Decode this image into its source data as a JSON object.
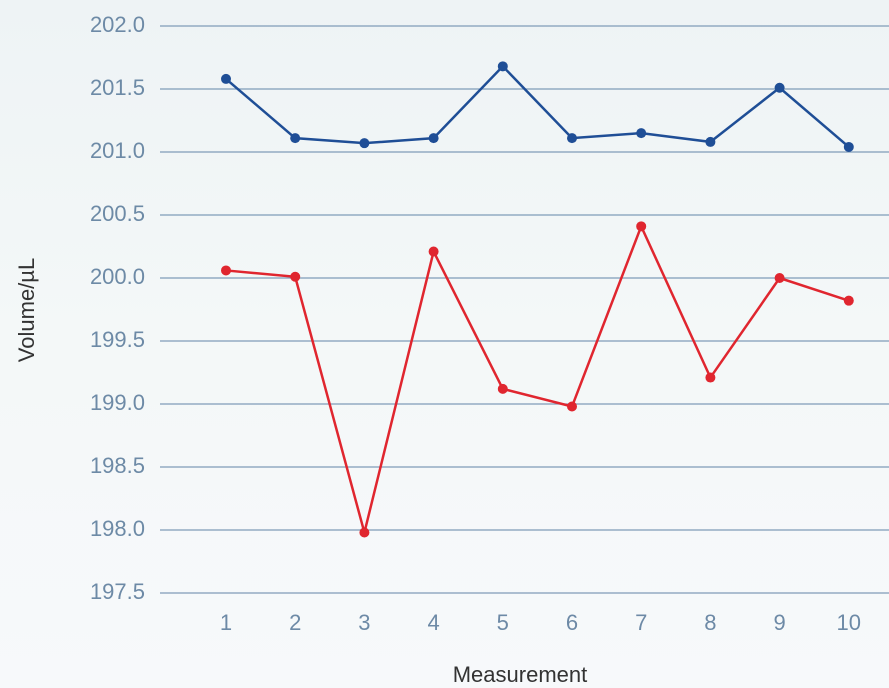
{
  "chart_data": {
    "type": "line",
    "y_label": "Volume/µL",
    "x_label": "Measurement",
    "categories": [
      "1",
      "2",
      "3",
      "4",
      "5",
      "6",
      "7",
      "8",
      "9",
      "10"
    ],
    "series": [
      {
        "color": "#1f4e96",
        "values": [
          201.58,
          201.11,
          201.07,
          201.11,
          201.68,
          201.11,
          201.15,
          201.08,
          201.51,
          201.04
        ]
      },
      {
        "color": "#e0262f",
        "values": [
          200.06,
          200.01,
          197.98,
          200.21,
          199.12,
          198.98,
          200.41,
          199.21,
          200.0,
          199.82
        ]
      }
    ],
    "ylim": [
      197.5,
      202.0
    ],
    "yticks": [
      197.5,
      {
        "value": 198,
        "label": "198.0"
      },
      198.5,
      {
        "value": 199,
        "label": "199.0"
      },
      199.5,
      {
        "value": 200,
        "label": "200.0"
      },
      200.5,
      {
        "value": 201,
        "label": "201.0"
      },
      201.5,
      {
        "value": 202,
        "label": "202.0"
      }
    ],
    "grid": true
  }
}
